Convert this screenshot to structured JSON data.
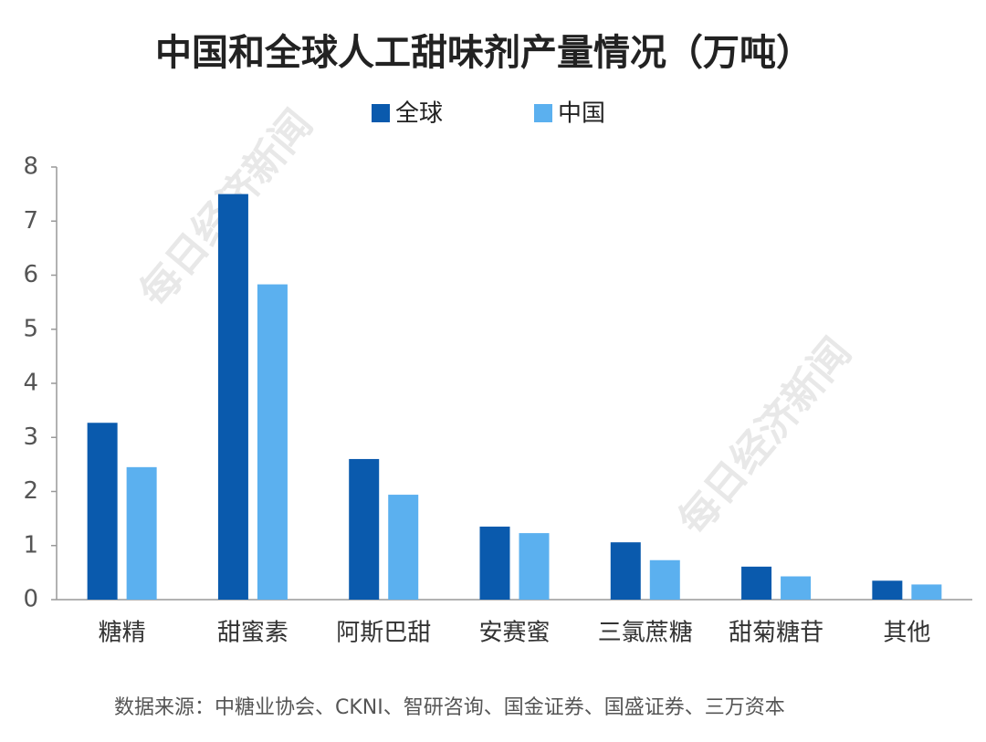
{
  "chart_data": {
    "type": "bar",
    "title": "中国和全球人工甜味剂产量情况（万吨）",
    "categories": [
      "糖精",
      "甜蜜素",
      "阿斯巴甜",
      "安赛蜜",
      "三氯蔗糖",
      "甜菊糖苷",
      "其他"
    ],
    "series": [
      {
        "name": "全球",
        "color": "#0a5aad",
        "values": [
          3.27,
          7.5,
          2.6,
          1.35,
          1.06,
          0.61,
          0.35
        ]
      },
      {
        "name": "中国",
        "color": "#5bb0ef",
        "values": [
          2.45,
          5.83,
          1.94,
          1.23,
          0.73,
          0.43,
          0.28
        ]
      }
    ],
    "ylim": [
      0,
      8
    ],
    "yticks": [
      0,
      1,
      2,
      3,
      4,
      5,
      6,
      7,
      8
    ],
    "source": "数据来源：中糖业协会、CKNI、智研咨询、国金证券、国盛证券、三万资本",
    "watermark": "每日经济新闻"
  }
}
